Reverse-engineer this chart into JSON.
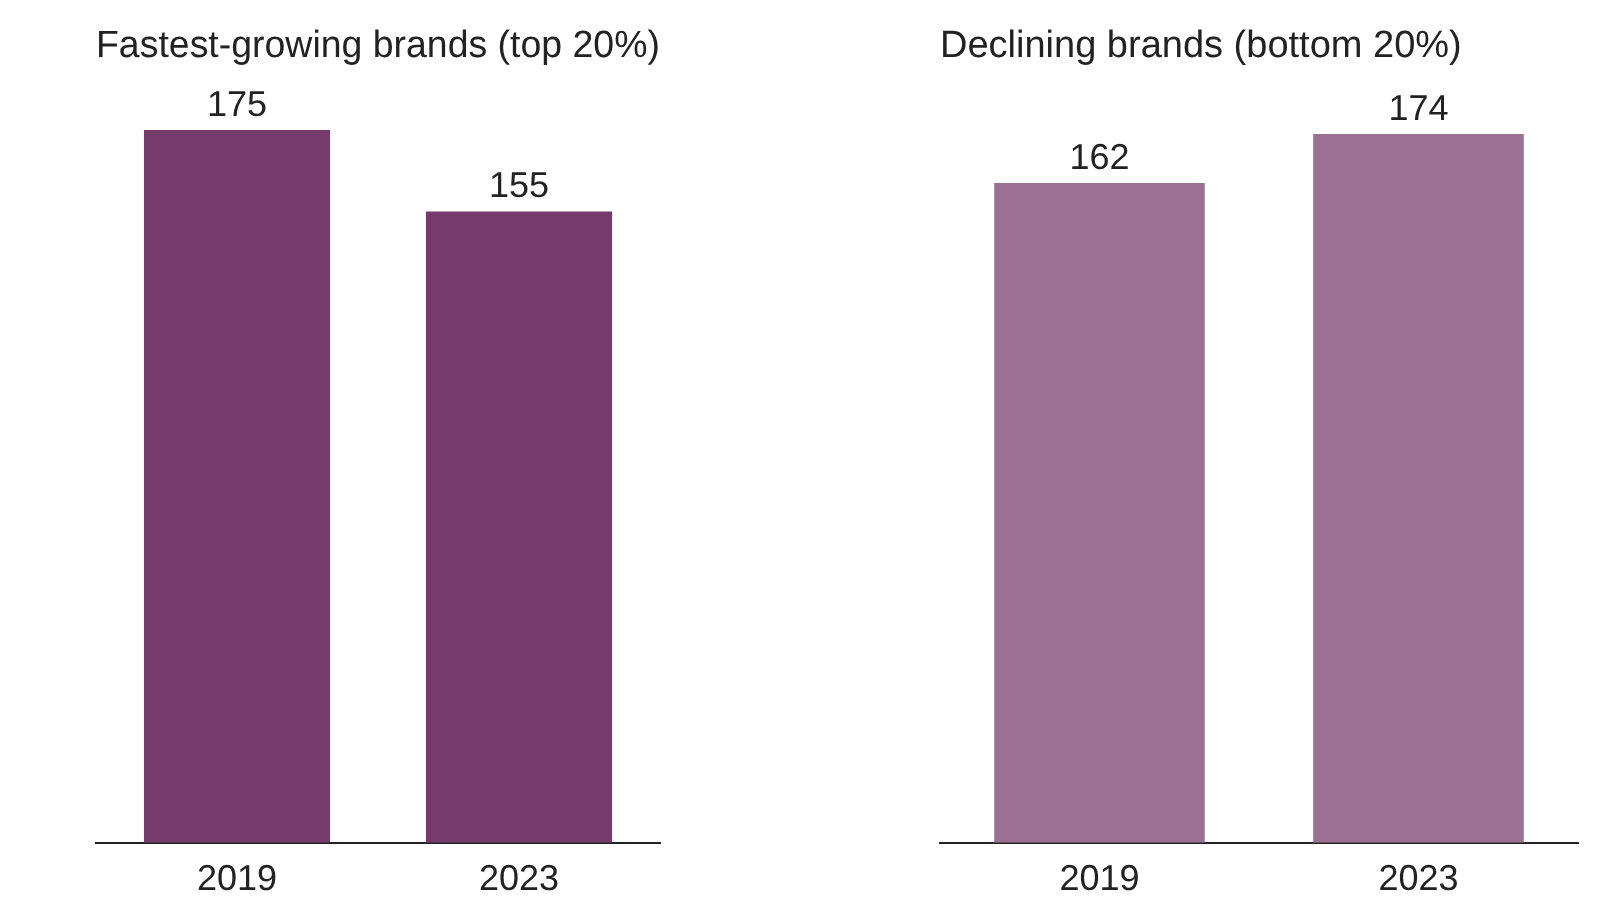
{
  "chart_data": [
    {
      "type": "bar",
      "title": "Fastest-growing brands (top 20%)",
      "categories": [
        "2019",
        "2023"
      ],
      "values": [
        175,
        155
      ],
      "color": "#763a6c",
      "data_labels": true,
      "tick_labels": "x",
      "grid": false,
      "legend": false
    },
    {
      "type": "bar",
      "title": "Declining brands (bottom 20%)",
      "categories": [
        "2019",
        "2023"
      ],
      "values": [
        162,
        174
      ],
      "color": "#9c6f95",
      "data_labels": true,
      "tick_labels": "x",
      "grid": false,
      "legend": false
    }
  ]
}
